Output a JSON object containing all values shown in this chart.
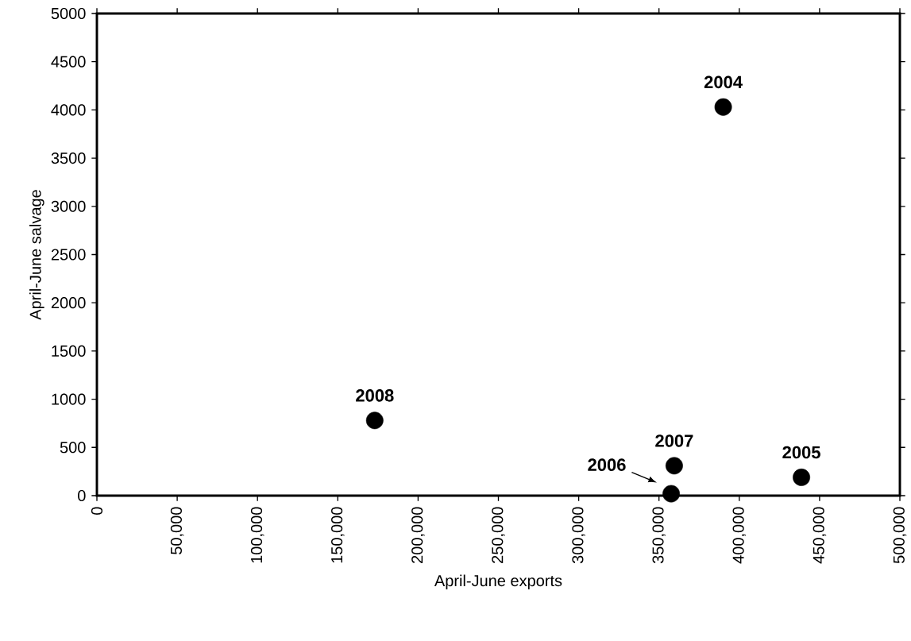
{
  "chart_data": {
    "type": "scatter",
    "xlabel": "April-June exports",
    "ylabel": "April-June salvage",
    "x": [
      390000,
      438700,
      357600,
      359500,
      173000
    ],
    "values": [
      4030,
      190,
      20,
      310,
      780
    ],
    "color": "#000000",
    "marker": "circle",
    "grid": false,
    "xlim": [
      0,
      500000
    ],
    "ylim": [
      0,
      5000
    ],
    "xticks": [
      0,
      {
        "value": 50000,
        "label": "50,000"
      },
      {
        "value": 100000,
        "label": "100,000"
      },
      {
        "value": 150000,
        "label": "150,000"
      },
      {
        "value": 200000,
        "label": "200,000"
      },
      {
        "value": 250000,
        "label": "250,000"
      },
      {
        "value": 300000,
        "label": "300,000"
      },
      {
        "value": 350000,
        "label": "350,000"
      },
      {
        "value": 400000,
        "label": "400,000"
      },
      {
        "value": 450000,
        "label": "450,000"
      },
      {
        "value": 500000,
        "label": "500,000"
      }
    ],
    "yticks": [
      0,
      500,
      1000,
      1500,
      2000,
      2500,
      3000,
      3500,
      4000,
      4500,
      5000
    ],
    "annotations": [
      {
        "text": "2004",
        "x": 390000,
        "y": 4030
      },
      {
        "text": "2005",
        "x": 438700,
        "y": 190
      },
      {
        "text": "2006",
        "x": 357600,
        "y": 20
      },
      {
        "text": "2007",
        "x": 359500,
        "y": 310
      },
      {
        "text": "2008",
        "x": 173000,
        "y": 780
      }
    ]
  }
}
